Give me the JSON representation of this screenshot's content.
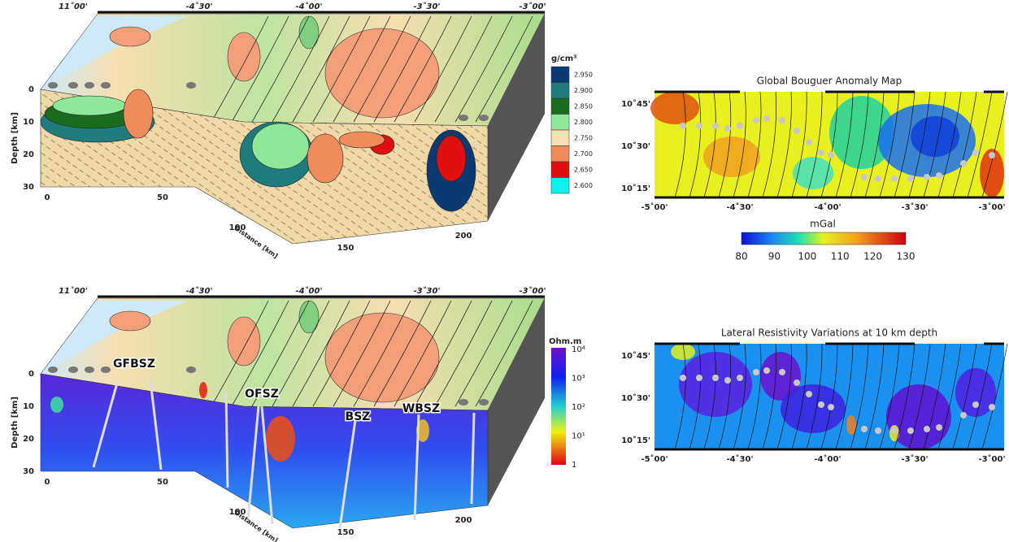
{
  "top_block": {
    "lon_labels": [
      "11˚00'",
      "-4˚30'",
      "-4˚00'",
      "-3˚30'",
      "-3˚00'"
    ],
    "depth_label": "Depth [km]",
    "depth_ticks": [
      "0",
      "10",
      "20",
      "30"
    ],
    "distance_ticks": [
      "0",
      "50",
      "100",
      "150",
      "200"
    ],
    "distance_label": "Distance [km]",
    "legend_title": "g/cm³",
    "legend": [
      {
        "label": "2.950",
        "color": "#0b3a73"
      },
      {
        "label": "2.900",
        "color": "#1f7b7c"
      },
      {
        "label": "2.850",
        "color": "#1b6b1f"
      },
      {
        "label": "2.800",
        "color": "#8fe89a"
      },
      {
        "label": "2.750",
        "color": "#f6dfb0"
      },
      {
        "label": "2.700",
        "color": "#f08b5c"
      },
      {
        "label": "2.650",
        "color": "#e01010"
      },
      {
        "label": "2.600",
        "color": "#10f0f0"
      }
    ]
  },
  "bottom_block": {
    "lon_labels": [
      "11˚00'",
      "-4˚30'",
      "-4˚00'",
      "-3˚30'",
      "-3˚00'"
    ],
    "depth_label": "Depth [km]",
    "depth_ticks": [
      "0",
      "10",
      "20",
      "30"
    ],
    "distance_ticks": [
      "0",
      "50",
      "100",
      "150",
      "200"
    ],
    "distance_label": "Distance [km]",
    "zones": [
      "GFBSZ",
      "OFSZ",
      "BSZ",
      "WBSZ"
    ],
    "colorbar_title": "Ohm.m",
    "colorbar_ticks": [
      "10⁴",
      "10³",
      "10²",
      "10¹",
      "1"
    ]
  },
  "bouguer_map": {
    "title": "Global Bouguer Anomaly Map",
    "lat_labels": [
      "10˚45'",
      "10˚30'",
      "10˚15'"
    ],
    "lon_labels": [
      "-5˚00'",
      "-4˚30'",
      "-4˚00'",
      "-3˚30'",
      "-3˚00'"
    ],
    "colorbar_label": "mGal",
    "colorbar_ticks": [
      "80",
      "90",
      "100",
      "110",
      "120",
      "130"
    ]
  },
  "resistivity_map": {
    "title": "Lateral Resistivity Variations at 10 km depth",
    "lat_labels": [
      "10˚45'",
      "10˚30'",
      "10˚15'"
    ],
    "lon_labels": [
      "-5˚00'",
      "-4˚30'",
      "-4˚00'",
      "-3˚30'",
      "-3˚00'"
    ]
  }
}
